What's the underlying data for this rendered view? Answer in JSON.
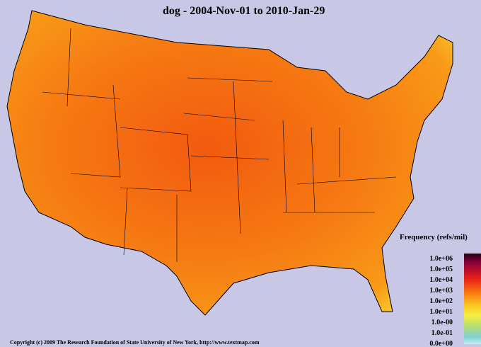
{
  "title": "dog - 2004-Nov-01 to 2010-Jan-29",
  "legend": {
    "title": "Frequency (refs/mil)",
    "labels": [
      "1.0e+06",
      "1.0e+05",
      "1.0e+04",
      "1.0e+03",
      "1.0e+02",
      "1.0e+01",
      "1.0e-00",
      "1.0e-01",
      "0.0e+00"
    ]
  },
  "footer": "Copyright (c) 2009 The Research Foundation of State University of New York, http://www.textmap.com"
}
